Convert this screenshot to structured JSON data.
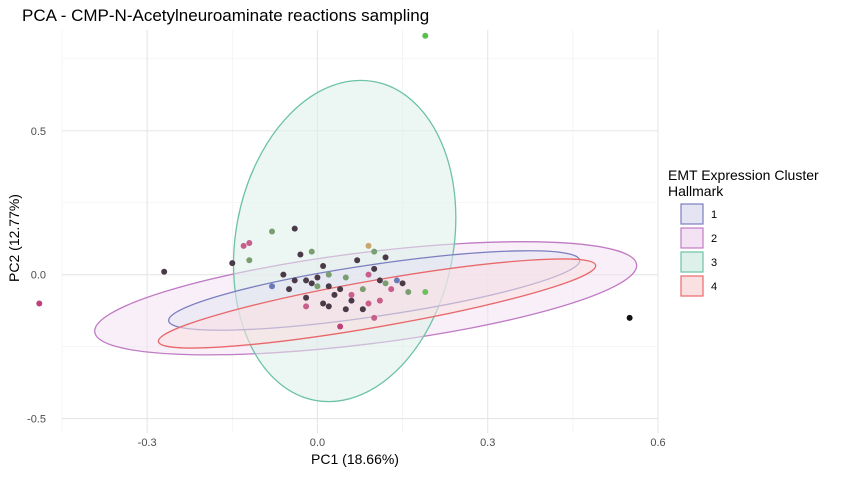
{
  "chart_data": {
    "type": "scatter",
    "title": "PCA - CMP-N-Acetylneuroaminate reactions sampling",
    "xlabel": "PC1 (18.66%)",
    "ylabel": "PC2 (12.77%)",
    "xlim": [
      -0.45,
      0.6
    ],
    "ylim": [
      -0.55,
      0.85
    ],
    "x_ticks": [
      -0.3,
      0.0,
      0.3,
      0.6
    ],
    "x_tick_labels": [
      "-0.3",
      "0.0",
      "0.3",
      "0.6"
    ],
    "y_ticks": [
      -0.5,
      0.0,
      0.5
    ],
    "y_tick_labels": [
      "-0.5",
      "0.0",
      "0.5"
    ],
    "grid": true,
    "legend_position": "right",
    "legend": {
      "title_line1": "EMT Expression Cluster",
      "title_line2": "Hallmark",
      "entries": [
        {
          "label": "1",
          "stroke": "#7B7FC0",
          "fill": "#E4E4F3"
        },
        {
          "label": "2",
          "stroke": "#C07BC4",
          "fill": "#F3E2F3"
        },
        {
          "label": "3",
          "stroke": "#6DC2A8",
          "fill": "#DDF1EA"
        },
        {
          "label": "4",
          "stroke": "#E8686B",
          "fill": "#FBE0E1"
        }
      ]
    },
    "ellipses": [
      {
        "group": "2",
        "cx": 0.085,
        "cy": -0.082,
        "rx": 0.481,
        "ry": 0.159,
        "angle_deg": 7.1
      },
      {
        "group": "3",
        "cx": 0.048,
        "cy": 0.117,
        "rx": 0.192,
        "ry": 0.563,
        "angle_deg": -10.5
      },
      {
        "group": "1",
        "cx": 0.1,
        "cy": -0.055,
        "rx": 0.366,
        "ry": 0.09,
        "angle_deg": 8.4
      },
      {
        "group": "4",
        "cx": 0.105,
        "cy": -0.1,
        "rx": 0.391,
        "ry": 0.081,
        "angle_deg": 9.9
      }
    ],
    "points": [
      {
        "x": 0.19,
        "y": 0.83,
        "color": "#5BBF4F"
      },
      {
        "x": 0.55,
        "y": -0.15,
        "color": "#111111"
      },
      {
        "x": -0.49,
        "y": -0.1,
        "color": "#C0407A"
      },
      {
        "x": -0.27,
        "y": 0.01,
        "color": "#4A3A48"
      },
      {
        "x": -0.04,
        "y": 0.16,
        "color": "#4A3A48"
      },
      {
        "x": -0.13,
        "y": 0.1,
        "color": "#C85E8A"
      },
      {
        "x": -0.12,
        "y": 0.11,
        "color": "#C85E8A"
      },
      {
        "x": -0.08,
        "y": 0.15,
        "color": "#7A9E70"
      },
      {
        "x": -0.15,
        "y": 0.04,
        "color": "#4A3A48"
      },
      {
        "x": -0.12,
        "y": 0.05,
        "color": "#7A9E70"
      },
      {
        "x": -0.08,
        "y": -0.04,
        "color": "#6A7AB8"
      },
      {
        "x": -0.03,
        "y": 0.07,
        "color": "#4A3A48"
      },
      {
        "x": -0.01,
        "y": 0.08,
        "color": "#7A9E70"
      },
      {
        "x": 0.01,
        "y": 0.03,
        "color": "#4A3A48"
      },
      {
        "x": -0.05,
        "y": -0.05,
        "color": "#4A3A48"
      },
      {
        "x": -0.02,
        "y": -0.02,
        "color": "#4A3A48"
      },
      {
        "x": -0.01,
        "y": -0.03,
        "color": "#4A3A48"
      },
      {
        "x": 0.0,
        "y": -0.04,
        "color": "#7A9E70"
      },
      {
        "x": 0.02,
        "y": -0.04,
        "color": "#4A3A48"
      },
      {
        "x": 0.03,
        "y": -0.07,
        "color": "#4A3A48"
      },
      {
        "x": 0.05,
        "y": -0.01,
        "color": "#7A9E70"
      },
      {
        "x": -0.02,
        "y": -0.08,
        "color": "#4A3A48"
      },
      {
        "x": 0.01,
        "y": -0.1,
        "color": "#4A3A48"
      },
      {
        "x": 0.02,
        "y": -0.11,
        "color": "#4A3A48"
      },
      {
        "x": 0.04,
        "y": -0.18,
        "color": "#C0407A"
      },
      {
        "x": 0.09,
        "y": 0.1,
        "color": "#C8A86E"
      },
      {
        "x": 0.1,
        "y": 0.08,
        "color": "#7A9E70"
      },
      {
        "x": 0.09,
        "y": 0.0,
        "color": "#C85E8A"
      },
      {
        "x": 0.1,
        "y": 0.02,
        "color": "#4A3A48"
      },
      {
        "x": 0.07,
        "y": 0.05,
        "color": "#4A3A48"
      },
      {
        "x": 0.08,
        "y": -0.05,
        "color": "#7A9E70"
      },
      {
        "x": 0.11,
        "y": -0.02,
        "color": "#4A3A48"
      },
      {
        "x": 0.12,
        "y": -0.03,
        "color": "#7A9E70"
      },
      {
        "x": 0.11,
        "y": -0.09,
        "color": "#C85E8A"
      },
      {
        "x": 0.09,
        "y": -0.1,
        "color": "#C85E8A"
      },
      {
        "x": 0.1,
        "y": -0.15,
        "color": "#C85E8A"
      },
      {
        "x": 0.13,
        "y": -0.05,
        "color": "#C85E8A"
      },
      {
        "x": 0.14,
        "y": -0.02,
        "color": "#6A7AB8"
      },
      {
        "x": 0.15,
        "y": -0.03,
        "color": "#4A3A48"
      },
      {
        "x": 0.16,
        "y": -0.06,
        "color": "#7A9E70"
      },
      {
        "x": 0.12,
        "y": 0.06,
        "color": "#4A3A48"
      },
      {
        "x": 0.06,
        "y": -0.09,
        "color": "#4A3A48"
      },
      {
        "x": 0.05,
        "y": -0.12,
        "color": "#4A3A48"
      },
      {
        "x": 0.08,
        "y": -0.12,
        "color": "#4A3A48"
      },
      {
        "x": 0.19,
        "y": -0.06,
        "color": "#6FBF5F"
      },
      {
        "x": 0.06,
        "y": -0.07,
        "color": "#C85E8A"
      },
      {
        "x": 0.04,
        "y": -0.05,
        "color": "#4A3A48"
      },
      {
        "x": 0.02,
        "y": 0.0,
        "color": "#7A9E70"
      },
      {
        "x": -0.06,
        "y": 0.0,
        "color": "#4A3A48"
      },
      {
        "x": -0.04,
        "y": -0.02,
        "color": "#4A3A48"
      },
      {
        "x": 0.0,
        "y": -0.01,
        "color": "#4A3A48"
      },
      {
        "x": -0.02,
        "y": -0.11,
        "color": "#C85E8A"
      }
    ]
  }
}
